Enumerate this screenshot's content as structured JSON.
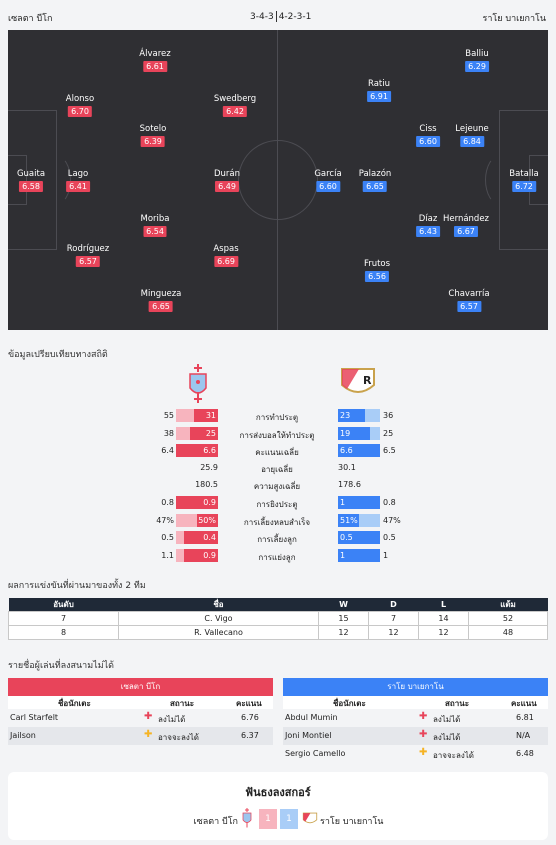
{
  "header": {
    "home_team": "เซลตา บีโก",
    "home_formation": "3-4-3",
    "away_formation": "4-2-3-1",
    "away_team": "ราโย บาเยกาโน"
  },
  "lineup": {
    "home": [
      {
        "name": "Guaita",
        "rating": "6.58"
      },
      {
        "name": "Alonso",
        "rating": "6.70"
      },
      {
        "name": "Lago",
        "rating": "6.41"
      },
      {
        "name": "Rodríguez",
        "rating": "6.57"
      },
      {
        "name": "Álvarez",
        "rating": "6.61"
      },
      {
        "name": "Sotelo",
        "rating": "6.39"
      },
      {
        "name": "Moriba",
        "rating": "6.54"
      },
      {
        "name": "Mingueza",
        "rating": "6.65"
      },
      {
        "name": "Swedberg",
        "rating": "6.42"
      },
      {
        "name": "Durán",
        "rating": "6.49"
      },
      {
        "name": "Aspas",
        "rating": "6.69"
      }
    ],
    "away": [
      {
        "name": "García",
        "rating": "6.60"
      },
      {
        "name": "Ratiu",
        "rating": "6.91"
      },
      {
        "name": "Palazón",
        "rating": "6.65"
      },
      {
        "name": "Frutos",
        "rating": "6.56"
      },
      {
        "name": "Ciss",
        "rating": "6.60"
      },
      {
        "name": "Díaz",
        "rating": "6.43"
      },
      {
        "name": "Balliu",
        "rating": "6.29"
      },
      {
        "name": "Lejeune",
        "rating": "6.84"
      },
      {
        "name": "Hernández",
        "rating": "6.67"
      },
      {
        "name": "Chavarría",
        "rating": "6.57"
      },
      {
        "name": "Batalla",
        "rating": "6.72"
      }
    ]
  },
  "stats": {
    "title": "ข้อมูลเปรียบเทียบทางสถิติ",
    "rows": [
      {
        "label": "การทำประตู",
        "home_total": "55",
        "home_val": "31",
        "away_val": "23",
        "away_total": "36",
        "home_frac": 0.56,
        "away_frac": 0.64,
        "type": "bar"
      },
      {
        "label": "การส่งบอลให้ทำประตู",
        "home_total": "38",
        "home_val": "25",
        "away_val": "19",
        "away_total": "25",
        "home_frac": 0.66,
        "away_frac": 0.76,
        "type": "bar"
      },
      {
        "label": "คะแนนเฉลี่ย",
        "home_total": "6.4",
        "home_val": "6.6",
        "away_val": "6.6",
        "away_total": "6.5",
        "home_frac": 1,
        "away_frac": 1,
        "type": "bar"
      },
      {
        "label": "อายุเฉลี่ย",
        "home_val": "25.9",
        "away_val": "30.1",
        "type": "plain"
      },
      {
        "label": "ความสูงเฉลี่ย",
        "home_val": "180.5",
        "away_val": "178.6",
        "type": "plain"
      },
      {
        "label": "การยิงประตู",
        "home_total": "0.8",
        "home_val": "0.9",
        "away_val": "1",
        "away_total": "0.8",
        "home_frac": 1,
        "away_frac": 1,
        "type": "bar"
      },
      {
        "label": "การเลี้ยงหลบสำเร็จ",
        "home_total": "47%",
        "home_val": "50%",
        "away_val": "51%",
        "away_total": "47%",
        "home_frac": 0.5,
        "away_frac": 0.51,
        "type": "bar"
      },
      {
        "label": "การเลี้ยงลูก",
        "home_total": "0.5",
        "home_val": "0.4",
        "away_val": "0.5",
        "away_total": "0.5",
        "home_frac": 0.8,
        "away_frac": 1,
        "type": "bar"
      },
      {
        "label": "การแย่งลูก",
        "home_total": "1.1",
        "home_val": "0.9",
        "away_val": "1",
        "away_total": "1",
        "home_frac": 0.82,
        "away_frac": 1,
        "type": "bar"
      }
    ]
  },
  "standings": {
    "title": "ผลการแข่งขันที่ผ่านมาของทั้ง 2 ทีม",
    "columns": [
      "อันดับ",
      "ชื่อ",
      "W",
      "D",
      "L",
      "แต้ม"
    ],
    "rows": [
      [
        "7",
        "C. Vigo",
        "15",
        "7",
        "14",
        "52"
      ],
      [
        "8",
        "R. Vallecano",
        "12",
        "12",
        "12",
        "48"
      ]
    ]
  },
  "missing": {
    "title": "รายชื่อผู้เล่นที่ลงสนามไม่ได้",
    "col_player": "ชื่อนักเตะ",
    "col_status": "สถานะ",
    "col_rating": "คะแนน",
    "home": {
      "team": "เซลตา บีโก",
      "players": [
        {
          "name": "Carl Starfelt",
          "status": "ลงไม่ได้",
          "rating": "6.76",
          "icon": "red-cross-icon"
        },
        {
          "name": "Jailson",
          "status": "อาจจะลงได้",
          "rating": "6.37",
          "icon": "yellow-cross-icon"
        }
      ]
    },
    "away": {
      "team": "ราโย บาเยกาโน",
      "players": [
        {
          "name": "Abdul Mumin",
          "status": "ลงไม่ได้",
          "rating": "6.81",
          "icon": "red-cross-icon"
        },
        {
          "name": "Joni Montiel",
          "status": "ลงไม่ได้",
          "rating": "N/A",
          "icon": "red-cross-icon"
        },
        {
          "name": "Sergio Camello",
          "status": "อาจจะลงได้",
          "rating": "6.48",
          "icon": "yellow-cross-icon"
        }
      ]
    }
  },
  "h2h": {
    "title": "ฟันธงลงสกอร์",
    "home_team": "เซลตา บีโก",
    "home_score": "1",
    "away_score": "1",
    "away_team": "ราโย บาเยกาโน"
  },
  "colors": {
    "home": "#e8445a",
    "away": "#3b82f6",
    "pitch": "#2f2f33"
  }
}
